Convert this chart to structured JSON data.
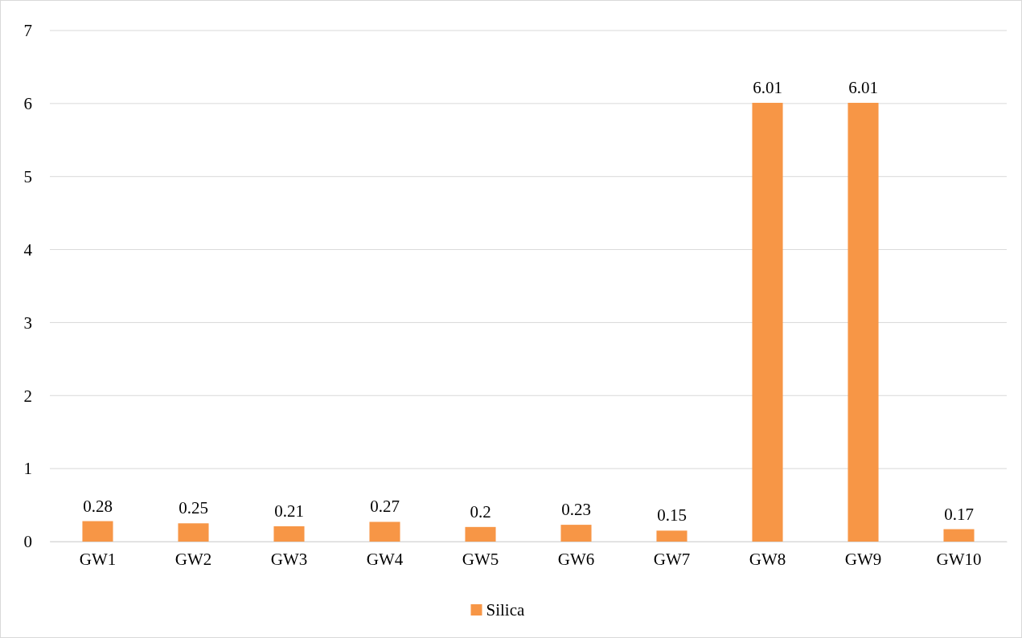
{
  "chart_data": {
    "type": "bar",
    "categories": [
      "GW1",
      "GW2",
      "GW3",
      "GW4",
      "GW5",
      "GW6",
      "GW7",
      "GW8",
      "GW9",
      "GW10"
    ],
    "series": [
      {
        "name": "Silica",
        "color": "#f79646",
        "values": [
          0.28,
          0.25,
          0.21,
          0.27,
          0.2,
          0.23,
          0.15,
          6.01,
          6.01,
          0.17
        ]
      }
    ],
    "ylim": [
      0,
      7
    ],
    "yticks": [
      0,
      1,
      2,
      3,
      4,
      5,
      6,
      7
    ],
    "grid": "y",
    "legend": "bottom",
    "data_labels": true
  }
}
